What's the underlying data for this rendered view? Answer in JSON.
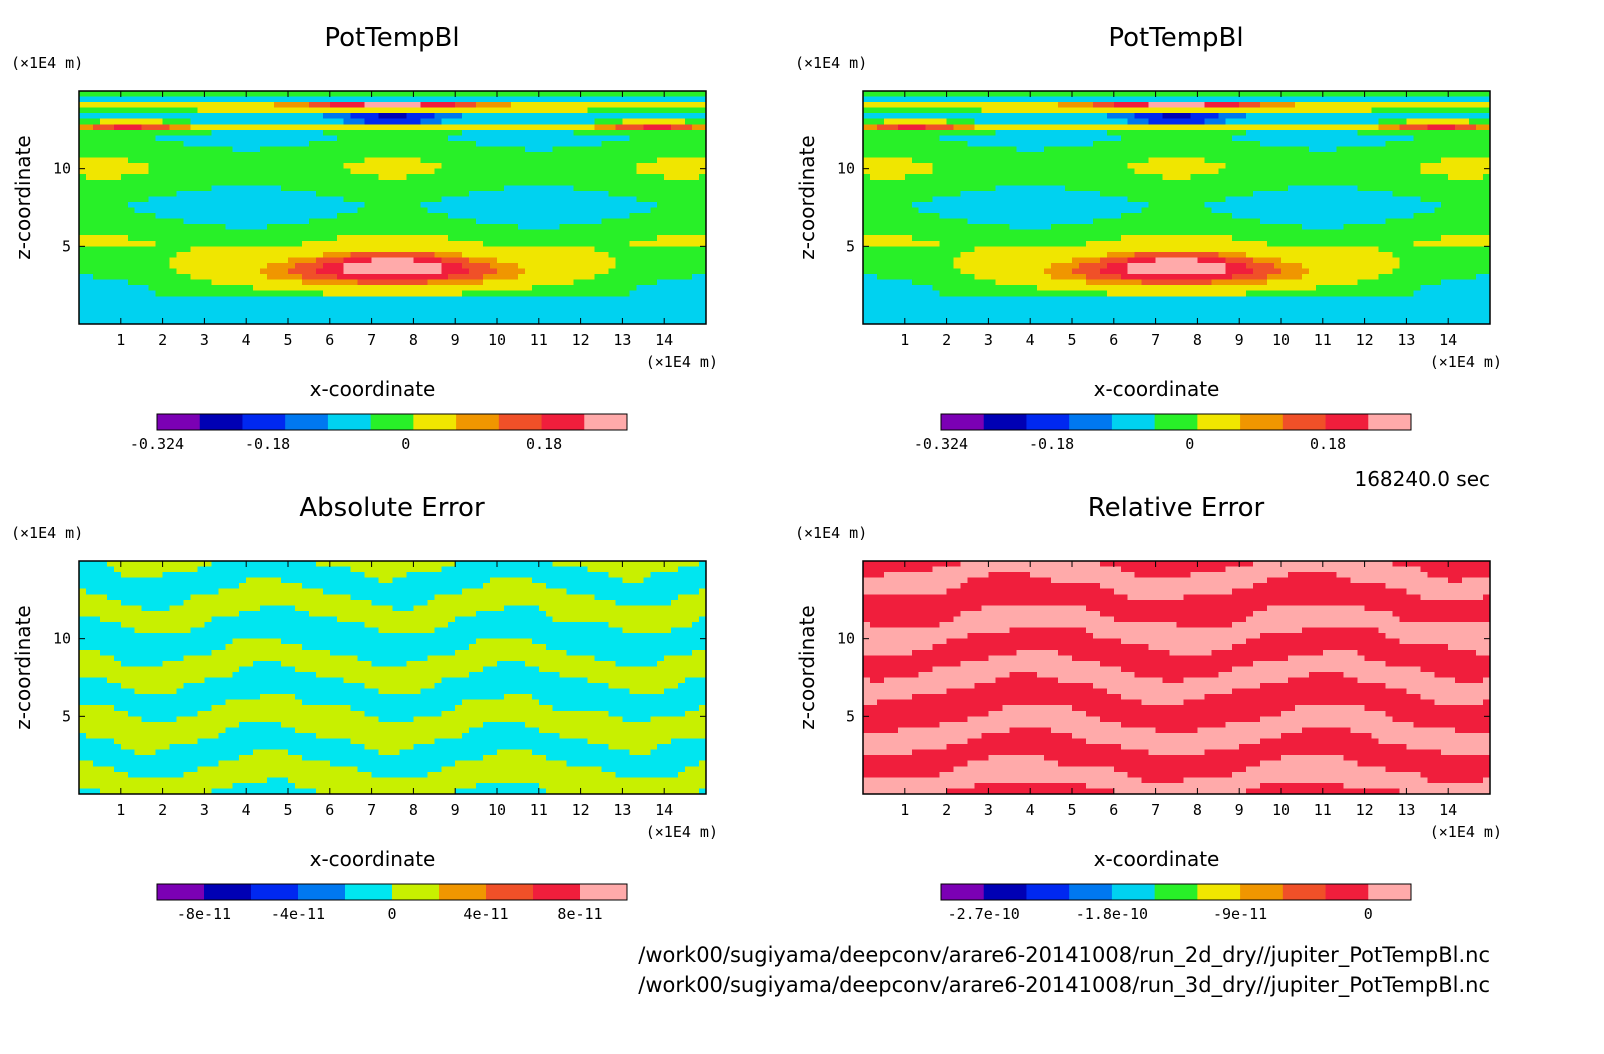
{
  "footer": {
    "time": "168240.0 sec",
    "path1": "/work00/sugiyama/deepconv/arare6-20141008/run_2d_dry//jupiter_PotTempBl.nc",
    "path2": "/work00/sugiyama/deepconv/arare6-20141008/run_3d_dry//jupiter_PotTempBl.nc"
  },
  "chart_data": [
    {
      "type": "heatmap",
      "title": "PotTempBl",
      "xlabel": "x-coordinate",
      "ylabel": "z-coordinate",
      "xunit": "(×1E4 m)",
      "yunit": "(×1E4 m)",
      "xlim": [
        0,
        15
      ],
      "ylim": [
        0,
        15
      ],
      "xticks": [
        "1",
        "2",
        "3",
        "4",
        "5",
        "6",
        "7",
        "8",
        "9",
        "10",
        "11",
        "12",
        "13",
        "14"
      ],
      "yticks": [
        "5",
        "10"
      ],
      "field": "pottemp",
      "colorbar": {
        "colors": [
          "#7b00b4",
          "#0000b4",
          "#0028f0",
          "#0078f0",
          "#00d2f0",
          "#28f028",
          "#f0e600",
          "#f09600",
          "#f05028",
          "#f01e3c",
          "#ffaaaa"
        ],
        "labels": [
          "-0.324",
          "-0.18",
          "0",
          "0.18"
        ],
        "label_positions": [
          0.0,
          4.0,
          9.0,
          14.0
        ],
        "total": 17
      }
    },
    {
      "type": "heatmap",
      "title": "PotTempBl",
      "xlabel": "x-coordinate",
      "ylabel": "z-coordinate",
      "xunit": "(×1E4 m)",
      "yunit": "(×1E4 m)",
      "xlim": [
        0,
        15
      ],
      "ylim": [
        0,
        15
      ],
      "xticks": [
        "1",
        "2",
        "3",
        "4",
        "5",
        "6",
        "7",
        "8",
        "9",
        "10",
        "11",
        "12",
        "13",
        "14"
      ],
      "yticks": [
        "5",
        "10"
      ],
      "field": "pottemp",
      "colorbar": {
        "colors": [
          "#7b00b4",
          "#0000b4",
          "#0028f0",
          "#0078f0",
          "#00d2f0",
          "#28f028",
          "#f0e600",
          "#f09600",
          "#f05028",
          "#f01e3c",
          "#ffaaaa"
        ],
        "labels": [
          "-0.324",
          "-0.18",
          "0",
          "0.18"
        ],
        "label_positions": [
          0.0,
          4.0,
          9.0,
          14.0
        ],
        "total": 17
      }
    },
    {
      "type": "heatmap",
      "title": "Absolute Error",
      "xlabel": "x-coordinate",
      "ylabel": "z-coordinate",
      "xunit": "(×1E4 m)",
      "yunit": "(×1E4 m)",
      "xlim": [
        0,
        15
      ],
      "ylim": [
        0,
        15
      ],
      "xticks": [
        "1",
        "2",
        "3",
        "4",
        "5",
        "6",
        "7",
        "8",
        "9",
        "10",
        "11",
        "12",
        "13",
        "14"
      ],
      "yticks": [
        "5",
        "10"
      ],
      "field": "abs",
      "fill_colors": [
        "#c8f000",
        "#00e6f0"
      ],
      "colorbar": {
        "colors": [
          "#7b00b4",
          "#0000b4",
          "#0028f0",
          "#0078f0",
          "#00e6f0",
          "#c8f000",
          "#f09600",
          "#f05028",
          "#f01e3c",
          "#ffaaaa"
        ],
        "labels": [
          "-8e-11",
          "-4e-11",
          "0",
          "4e-11",
          "8e-11"
        ],
        "label_positions": [
          1,
          3,
          5,
          7,
          9
        ],
        "total": 10
      }
    },
    {
      "type": "heatmap",
      "title": "Relative Error",
      "xlabel": "x-coordinate",
      "ylabel": "z-coordinate",
      "xunit": "(×1E4 m)",
      "yunit": "(×1E4 m)",
      "xlim": [
        0,
        15
      ],
      "ylim": [
        0,
        15
      ],
      "xticks": [
        "1",
        "2",
        "3",
        "4",
        "5",
        "6",
        "7",
        "8",
        "9",
        "10",
        "11",
        "12",
        "13",
        "14"
      ],
      "yticks": [
        "5",
        "10"
      ],
      "field": "rel",
      "fill_colors": [
        "#ffaaaa",
        "#f01e3c"
      ],
      "colorbar": {
        "colors": [
          "#7b00b4",
          "#0000b4",
          "#0028f0",
          "#0078f0",
          "#00d2f0",
          "#28f028",
          "#f0e600",
          "#f09600",
          "#f05028",
          "#f01e3c",
          "#ffaaaa"
        ],
        "labels": [
          "-2.7e-10",
          "-1.8e-10",
          "-9e-11",
          "0"
        ],
        "label_positions": [
          1,
          4,
          7,
          10
        ],
        "total": 11
      }
    }
  ]
}
